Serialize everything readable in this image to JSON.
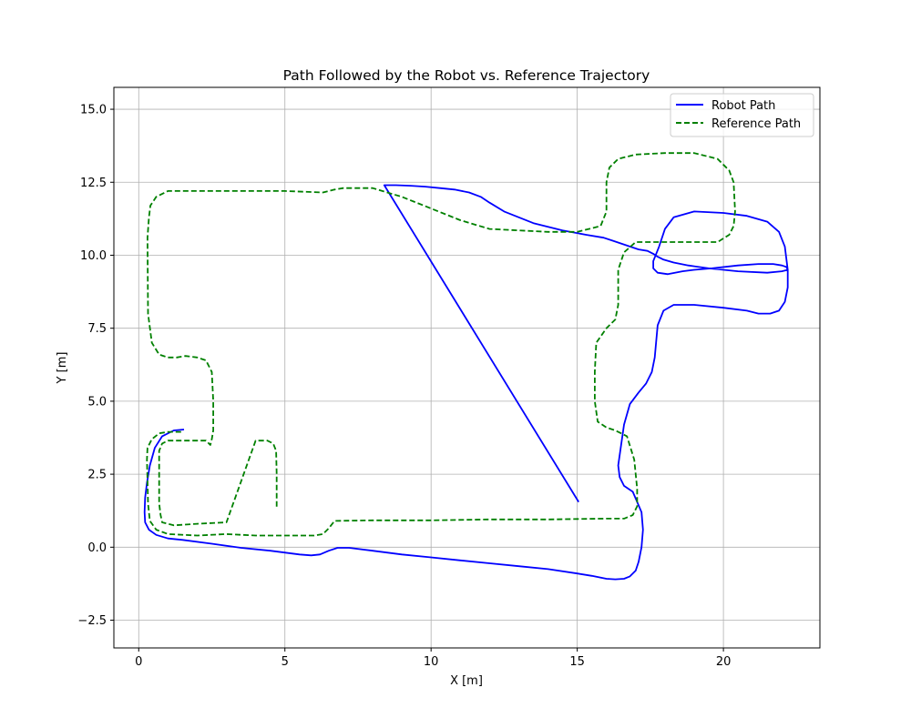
{
  "chart_data": {
    "type": "line",
    "title": "Path Followed by the Robot vs. Reference Trajectory",
    "xlabel": "X [m]",
    "ylabel": "Y [m]",
    "xlim": [
      -0.85,
      23.3
    ],
    "ylim": [
      -3.45,
      15.75
    ],
    "xticks": [
      0,
      5,
      10,
      15,
      20
    ],
    "yticks": [
      -2.5,
      0.0,
      2.5,
      5.0,
      7.5,
      10.0,
      12.5,
      15.0
    ],
    "xtick_labels": [
      "0",
      "5",
      "10",
      "15",
      "20"
    ],
    "ytick_labels": [
      "−2.5",
      "0.0",
      "2.5",
      "5.0",
      "7.5",
      "10.0",
      "12.5",
      "15.0"
    ],
    "grid": true,
    "legend_position": "top-right",
    "series": [
      {
        "name": "Robot Path",
        "color": "#0000ff",
        "style": "solid",
        "x": [
          1.55,
          1.2,
          0.8,
          0.55,
          0.38,
          0.28,
          0.22,
          0.2,
          0.22,
          0.35,
          0.6,
          1.0,
          1.5,
          2.5,
          3.5,
          4.5,
          5.5,
          5.9,
          6.2,
          6.5,
          6.8,
          7.2,
          8.0,
          9.0,
          10.0,
          11.0,
          12.0,
          13.0,
          14.0,
          15.0,
          15.5,
          16.0,
          16.3,
          16.6,
          16.8,
          17.0,
          17.1,
          17.2,
          17.25,
          17.2,
          16.9,
          16.6,
          16.45,
          16.4,
          16.5,
          16.6,
          16.8,
          17.1,
          17.35,
          17.55,
          17.65,
          17.75,
          17.95,
          18.3,
          19.0,
          20.0,
          20.8,
          21.2,
          21.6,
          21.9,
          22.1,
          22.2,
          22.2,
          22.1,
          21.9,
          21.5,
          20.8,
          20.0,
          19.0,
          18.3,
          18.0,
          17.8,
          17.6,
          17.6,
          17.75,
          18.1,
          18.6,
          19.0,
          19.6,
          20.5,
          21.2,
          21.7,
          22.0,
          22.15,
          22.2,
          22.0,
          21.5,
          20.5,
          19.5,
          18.8,
          18.3,
          17.95,
          17.75,
          17.6,
          17.4,
          17.1,
          16.8,
          16.5,
          16.2,
          15.9,
          15.3,
          14.5,
          13.5,
          12.5,
          12.0,
          11.7,
          11.3,
          10.8,
          10.3,
          9.8,
          9.3,
          8.8,
          8.4,
          15.05
        ],
        "y": [
          4.03,
          4.0,
          3.8,
          3.4,
          2.8,
          2.2,
          1.7,
          1.2,
          0.85,
          0.6,
          0.42,
          0.3,
          0.25,
          0.12,
          -0.02,
          -0.12,
          -0.25,
          -0.28,
          -0.25,
          -0.12,
          -0.02,
          -0.02,
          -0.12,
          -0.25,
          -0.35,
          -0.45,
          -0.55,
          -0.65,
          -0.75,
          -0.9,
          -0.98,
          -1.08,
          -1.1,
          -1.08,
          -1.0,
          -0.8,
          -0.5,
          0.0,
          0.6,
          1.2,
          1.9,
          2.1,
          2.4,
          2.8,
          3.5,
          4.2,
          4.9,
          5.3,
          5.6,
          6.0,
          6.5,
          7.6,
          8.1,
          8.3,
          8.3,
          8.2,
          8.1,
          8.0,
          8.0,
          8.1,
          8.4,
          8.9,
          9.5,
          10.3,
          10.8,
          11.15,
          11.35,
          11.45,
          11.5,
          11.3,
          10.9,
          10.3,
          9.8,
          9.55,
          9.4,
          9.35,
          9.45,
          9.5,
          9.55,
          9.65,
          9.7,
          9.7,
          9.65,
          9.6,
          9.5,
          9.45,
          9.4,
          9.45,
          9.55,
          9.65,
          9.75,
          9.85,
          9.95,
          10.05,
          10.15,
          10.2,
          10.3,
          10.4,
          10.5,
          10.6,
          10.7,
          10.85,
          11.1,
          11.5,
          11.8,
          12.0,
          12.15,
          12.25,
          12.3,
          12.35,
          12.38,
          12.4,
          12.4,
          1.55
        ]
      },
      {
        "name": "Reference Path",
        "color": "#008000",
        "style": "dashed",
        "x": [
          1.45,
          1.0,
          0.7,
          0.45,
          0.3,
          0.28,
          0.3,
          0.32,
          0.38,
          0.6,
          1.0,
          2.0,
          3.0,
          4.0,
          5.0,
          6.0,
          6.3,
          6.5,
          6.7,
          8.0,
          10.0,
          12.0,
          14.0,
          16.0,
          16.6,
          16.9,
          17.05,
          17.05,
          16.95,
          16.7,
          16.3,
          16.0,
          15.7,
          15.6,
          15.6,
          15.65,
          16.0,
          16.3,
          16.4,
          16.4,
          16.6,
          17.0,
          18.0,
          19.0,
          19.8,
          20.2,
          20.35,
          20.4,
          20.35,
          20.2,
          19.8,
          19.0,
          18.0,
          17.0,
          16.4,
          16.1,
          16.0,
          16.0,
          15.8,
          15.0,
          14.0,
          13.0,
          12.0,
          11.0,
          10.0,
          9.0,
          8.0,
          7.0,
          6.7,
          6.3,
          5.0,
          4.0,
          3.0,
          2.0,
          1.0,
          0.6,
          0.4,
          0.35,
          0.3,
          0.32,
          0.45,
          0.7,
          1.0,
          1.3,
          1.6,
          2.0,
          2.3,
          2.5,
          2.55,
          2.55,
          2.5,
          2.45,
          2.3,
          2.1,
          1.6,
          1.2,
          1.0,
          0.8,
          0.7,
          0.7,
          0.75,
          0.8,
          1.2,
          2.0,
          3.0,
          4.0,
          4.4,
          4.6,
          4.7,
          4.72,
          4.72
        ],
        "y": [
          3.95,
          3.95,
          3.9,
          3.7,
          3.4,
          3.0,
          2.3,
          1.5,
          0.9,
          0.6,
          0.45,
          0.4,
          0.45,
          0.4,
          0.4,
          0.4,
          0.45,
          0.65,
          0.9,
          0.92,
          0.92,
          0.95,
          0.95,
          0.98,
          0.98,
          1.1,
          1.4,
          2.0,
          3.0,
          3.8,
          4.0,
          4.1,
          4.3,
          5.0,
          6.0,
          7.0,
          7.5,
          7.8,
          8.3,
          9.5,
          10.1,
          10.45,
          10.45,
          10.45,
          10.45,
          10.7,
          11.0,
          11.5,
          12.5,
          12.9,
          13.3,
          13.5,
          13.5,
          13.45,
          13.3,
          13.0,
          12.5,
          11.5,
          11.0,
          10.8,
          10.8,
          10.85,
          10.9,
          11.2,
          11.6,
          12.0,
          12.3,
          12.3,
          12.25,
          12.15,
          12.2,
          12.2,
          12.2,
          12.2,
          12.2,
          12.0,
          11.7,
          11.3,
          10.6,
          8.0,
          7.0,
          6.6,
          6.5,
          6.5,
          6.55,
          6.5,
          6.4,
          6.0,
          5.0,
          4.0,
          3.7,
          3.5,
          3.65,
          3.65,
          3.65,
          3.65,
          3.65,
          3.55,
          3.3,
          1.5,
          1.1,
          0.85,
          0.75,
          0.8,
          0.85,
          3.65,
          3.65,
          3.55,
          3.3,
          2.5,
          1.3
        ]
      }
    ]
  }
}
